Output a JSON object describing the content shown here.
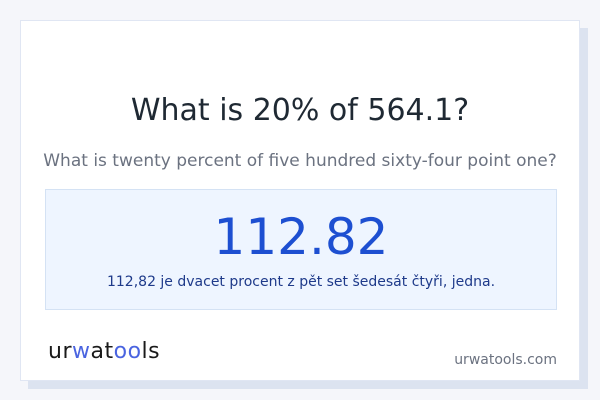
{
  "colors": {
    "accent": "#1d4fd1",
    "background": "#f5f6fa",
    "result_bg": "#eef5ff",
    "logo_accent": "#4a64e0"
  },
  "header": {
    "title": "What is 20% of 564.1?",
    "subtitle": "What is twenty percent of five hundred sixty-four point one?"
  },
  "result": {
    "value": "112.82",
    "words": "112,82 je dvacet procent z pět set šedesát čtyři, jedna."
  },
  "footer": {
    "logo": {
      "part1": "ur",
      "part2": "w",
      "part3": "at",
      "part4": "oo",
      "part5": "ls"
    },
    "site": "urwatools.com"
  }
}
